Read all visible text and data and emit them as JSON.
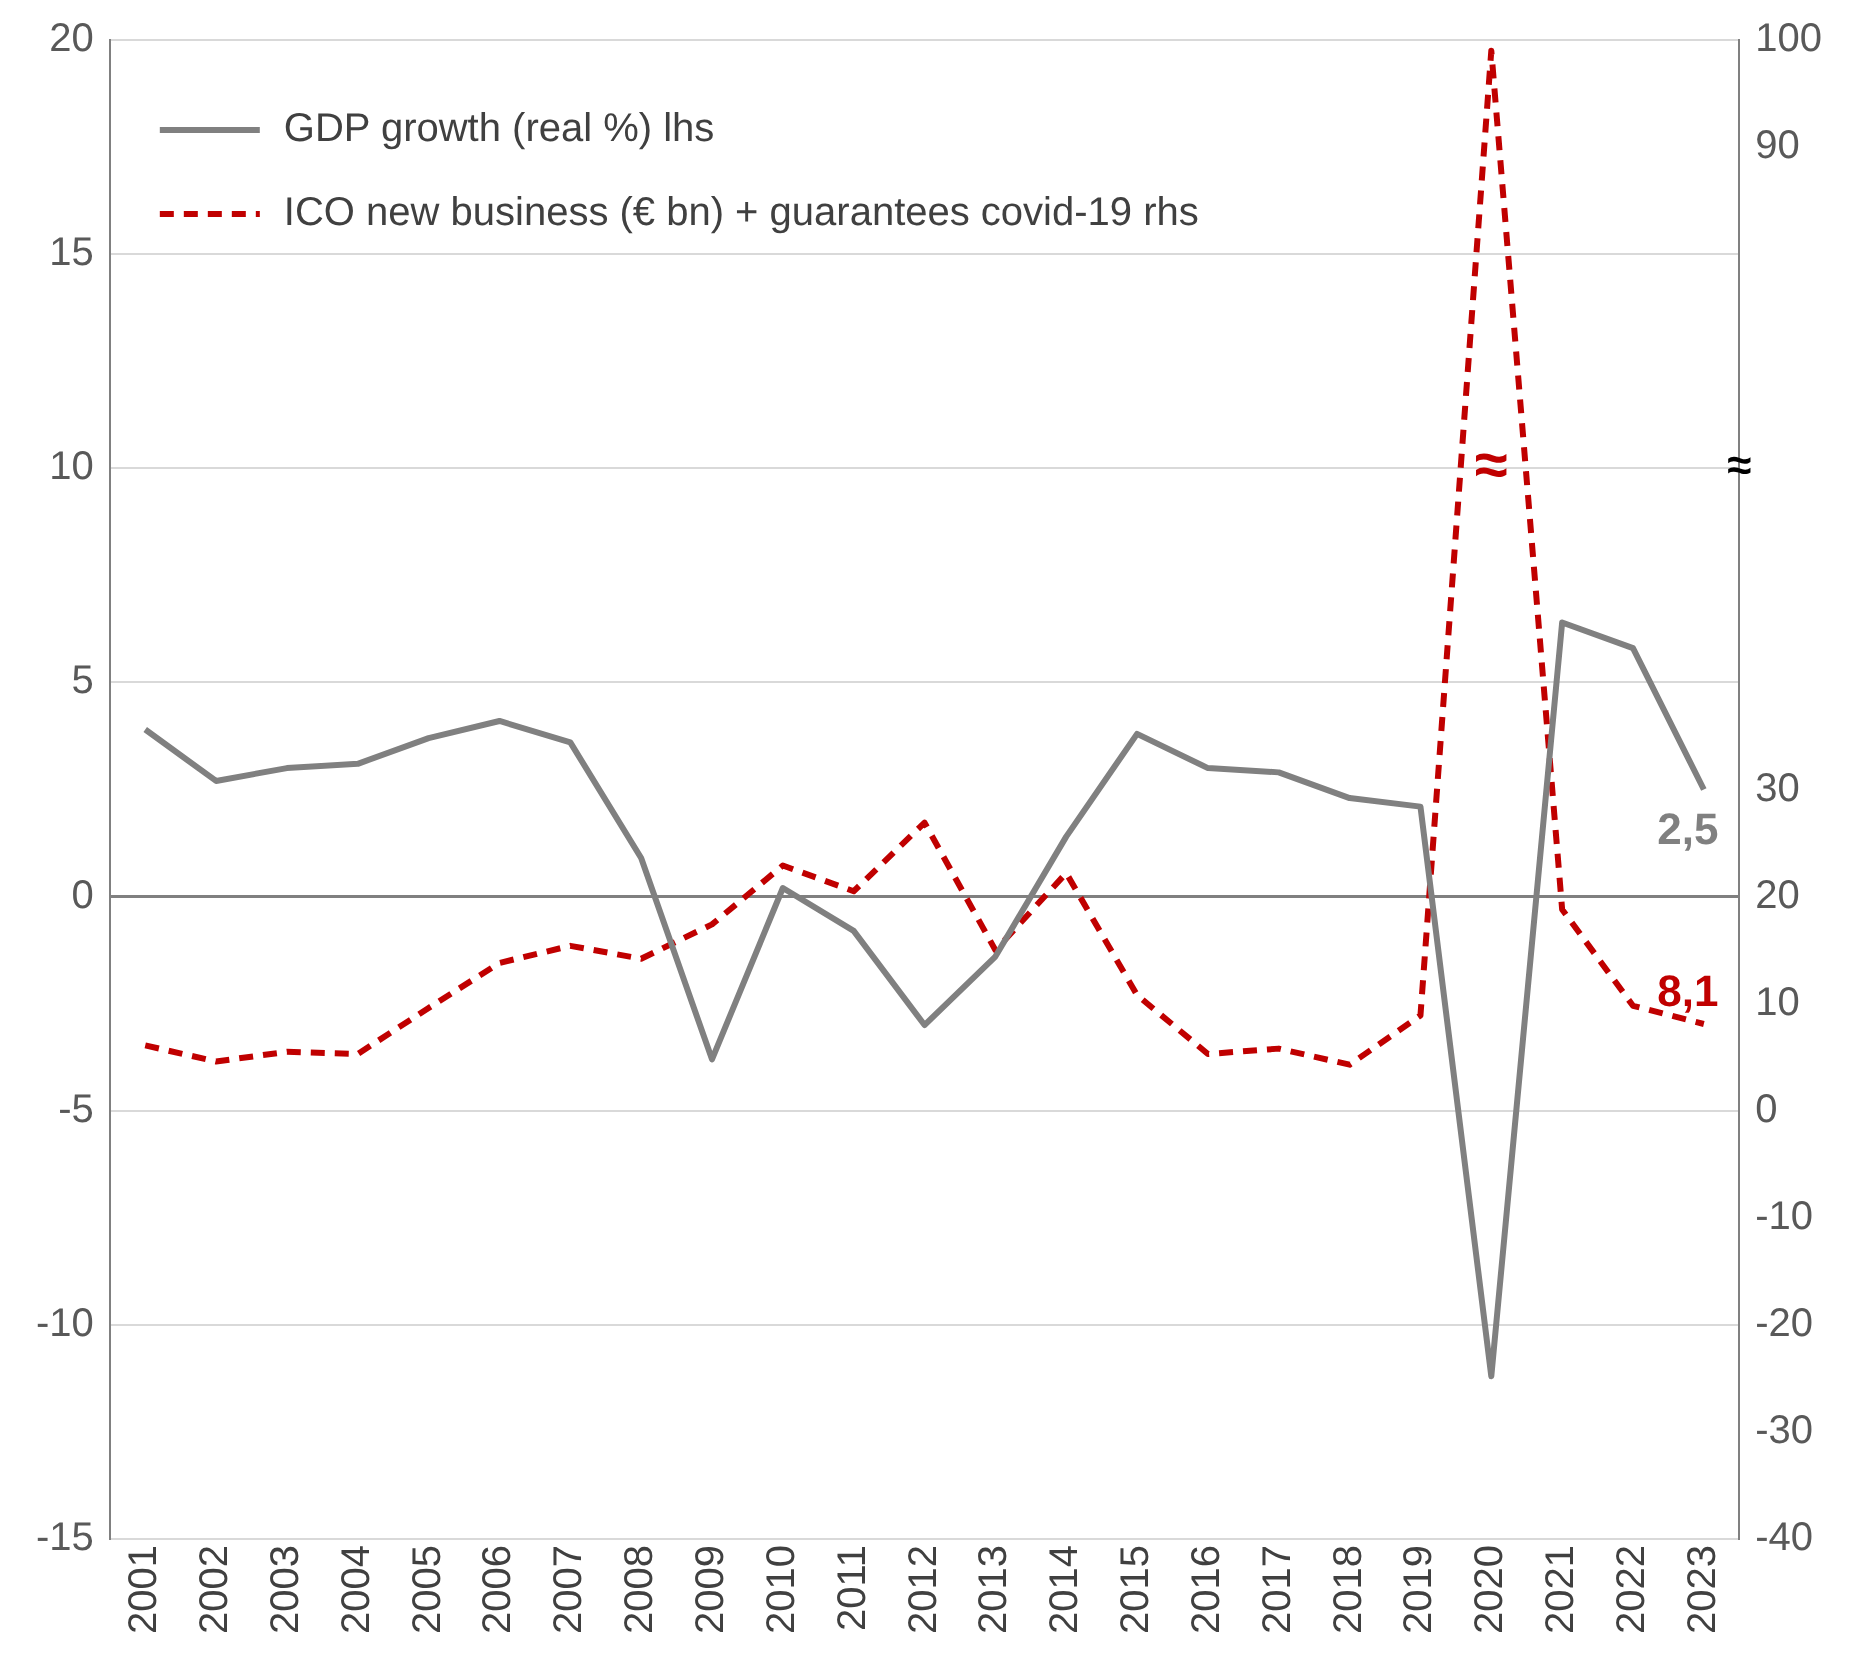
{
  "chart_data": {
    "type": "line",
    "categories": [
      "2001",
      "2002",
      "2003",
      "2004",
      "2005",
      "2006",
      "2007",
      "2008",
      "2009",
      "2010",
      "2011",
      "2012",
      "2013",
      "2014",
      "2015",
      "2016",
      "2017",
      "2018",
      "2019",
      "2020",
      "2021",
      "2022",
      "2023"
    ],
    "series": [
      {
        "name": "GDP growth (real %) lhs",
        "color": "#808080",
        "line_style": "solid",
        "axis": "y",
        "values": [
          3.9,
          2.7,
          3.0,
          3.1,
          3.7,
          4.1,
          3.6,
          0.9,
          -3.8,
          0.2,
          -0.8,
          -3.0,
          -1.4,
          1.4,
          3.8,
          3.0,
          2.9,
          2.3,
          2.1,
          -11.2,
          6.4,
          5.8,
          2.5
        ],
        "value_labels": [
          null,
          null,
          null,
          null,
          null,
          null,
          null,
          null,
          null,
          null,
          null,
          null,
          null,
          null,
          null,
          null,
          null,
          null,
          null,
          null,
          null,
          null,
          "2,5"
        ]
      },
      {
        "name": "ICO new business (€ bn) + guarantees covid-19 rhs",
        "color": "#c00000",
        "line_style": "dashed",
        "axis": "y2",
        "values": [
          6.1,
          4.6,
          5.5,
          5.3,
          9.6,
          13.8,
          15.4,
          14.2,
          17.4,
          22.9,
          20.5,
          26.9,
          15.0,
          22.2,
          10.8,
          5.3,
          5.8,
          4.3,
          8.9,
          99,
          18.8,
          9.8,
          8.1
        ],
        "value_labels": [
          null,
          null,
          null,
          null,
          null,
          null,
          null,
          null,
          null,
          null,
          null,
          null,
          null,
          null,
          null,
          null,
          null,
          null,
          null,
          null,
          null,
          null,
          "8,1"
        ]
      }
    ],
    "ylim": [
      -15,
      20
    ],
    "yticks": [
      -15,
      -10,
      -5,
      0,
      5,
      10,
      15,
      20
    ],
    "y2lim": [
      -40,
      100
    ],
    "y2ticks": [
      -40,
      -30,
      -20,
      -10,
      0,
      10,
      20,
      30,
      90,
      100
    ],
    "grid": "y",
    "legend": "top left",
    "marker": "none",
    "annotations": [
      "≈",
      "≈"
    ]
  }
}
